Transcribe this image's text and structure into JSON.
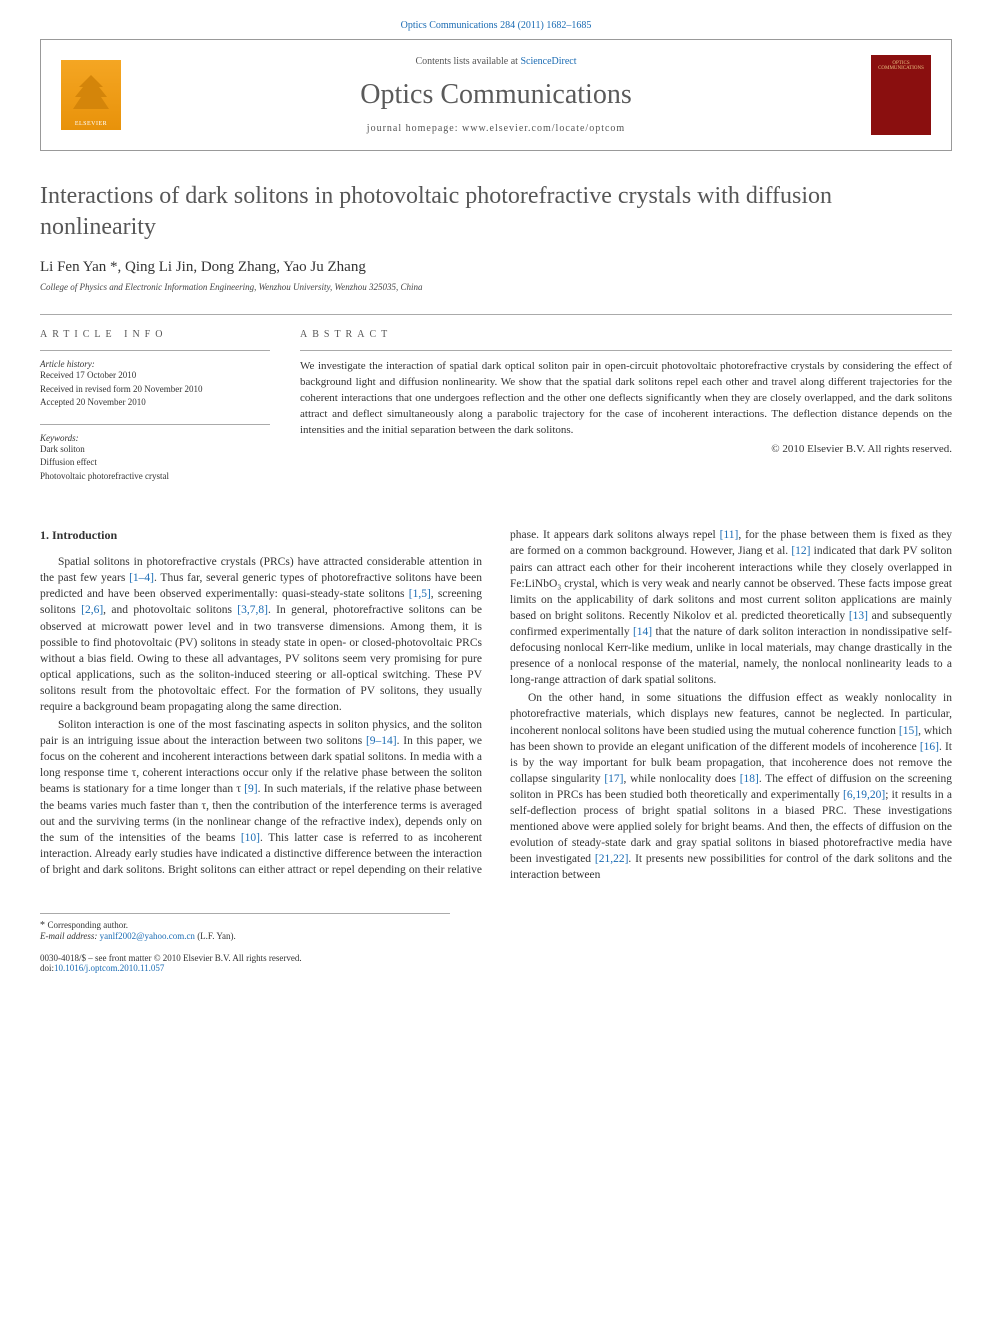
{
  "header": {
    "top_citation": "Optics Communications 284 (2011) 1682–1685",
    "contents_text": "Contents lists available at ",
    "sciencedirect": "ScienceDirect",
    "journal_name": "Optics Communications",
    "homepage_text": "journal homepage: www.elsevier.com/locate/optcom",
    "elsevier_label": "ELSEVIER",
    "cover_line1": "OPTICS",
    "cover_line2": "COMMUNICATIONS"
  },
  "article": {
    "title": "Interactions of dark solitons in photovoltaic photorefractive crystals with diffusion nonlinearity",
    "authors": "Li Fen Yan *, Qing Li Jin, Dong Zhang, Yao Ju Zhang",
    "affiliation": "College of Physics and Electronic Information Engineering, Wenzhou University, Wenzhou 325035, China"
  },
  "info": {
    "label": "ARTICLE INFO",
    "history_head": "Article history:",
    "received": "Received 17 October 2010",
    "revised": "Received in revised form 20 November 2010",
    "accepted": "Accepted 20 November 2010",
    "keywords_head": "Keywords:",
    "kw1": "Dark soliton",
    "kw2": "Diffusion effect",
    "kw3": "Photovoltaic photorefractive crystal"
  },
  "abstract": {
    "label": "ABSTRACT",
    "text": "We investigate the interaction of spatial dark optical soliton pair in open-circuit photovoltaic photorefractive crystals by considering the effect of background light and diffusion nonlinearity. We show that the spatial dark solitons repel each other and travel along different trajectories for the coherent interactions that one undergoes reflection and the other one deflects significantly when they are closely overlapped, and the dark solitons attract and deflect simultaneously along a parabolic trajectory for the case of incoherent interactions. The deflection distance depends on the intensities and the initial separation between the dark solitons.",
    "copyright": "© 2010 Elsevier B.V. All rights reserved."
  },
  "body": {
    "section1_title": "1. Introduction",
    "p1a": "Spatial solitons in photorefractive crystals (PRCs) have attracted considerable attention in the past few years ",
    "r1": "[1–4]",
    "p1b": ". Thus far, several generic types of photorefractive solitons have been predicted and have been observed experimentally: quasi-steady-state solitons ",
    "r2": "[1,5]",
    "p1c": ", screening solitons ",
    "r3": "[2,6]",
    "p1d": ", and photovoltaic solitons ",
    "r4": "[3,7,8]",
    "p1e": ". In general, photorefractive solitons can be observed at microwatt power level and in two transverse dimensions. Among them, it is possible to find photovoltaic (PV) solitons in steady state in open- or closed-photovoltaic PRCs without a bias field. Owing to these all advantages, PV solitons seem very promising for pure optical applications, such as the soliton-induced steering or all-optical switching. These PV solitons result from the photovoltaic effect. For the formation of PV solitons, they usually require a background beam propagating along the same direction.",
    "p2a": "Soliton interaction is one of the most fascinating aspects in soliton physics, and the soliton pair is an intriguing issue about the interaction between two solitons ",
    "r5": "[9–14]",
    "p2b": ". In this paper, we focus on the coherent and incoherent interactions between dark spatial solitons. In media with a long response time τ, coherent interactions occur only if the relative phase between the soliton beams is stationary for a time longer than τ ",
    "r6": "[9]",
    "p2c": ". In such materials, if the relative phase between the beams varies much faster than τ, then the contribution of the interference terms is averaged out and the surviving terms (in the nonlinear change of the refractive index), depends only on the sum of the intensities of the beams ",
    "r7": "[10]",
    "p2d": ". This latter case is referred to as incoherent interaction. Already early studies have indicated a distinctive difference between the interaction of bright and dark solitons. Bright solitons can either attract or repel depending on their relative phase. It appears dark solitons always repel ",
    "r8": "[11]",
    "p2e": ", for the phase between them is fixed as they are formed on a common background. However, Jiang et al. ",
    "r9": "[12]",
    "p2f": " indicated that dark PV soliton pairs can attract each other for their incoherent interactions while they closely overlapped in Fe:LiNbO₃ crystal, which is very weak and nearly cannot be observed. These facts impose great limits on the applicability of dark solitons and most current soliton applications are mainly based on bright solitons. Recently Nikolov et al. predicted theoretically ",
    "r10": "[13]",
    "p2g": " and subsequently confirmed experimentally ",
    "r11": "[14]",
    "p2h": " that the nature of dark soliton interaction in nondissipative self-defocusing nonlocal Kerr-like medium, unlike in local materials, may change drastically in the presence of a nonlocal response of the material, namely, the nonlocal nonlinearity leads to a long-range attraction of dark spatial solitons.",
    "p3a": "On the other hand, in some situations the diffusion effect as weakly nonlocality in photorefractive materials, which displays new features, cannot be neglected. In particular, incoherent nonlocal solitons have been studied using the mutual coherence function ",
    "r12": "[15]",
    "p3b": ", which has been shown to provide an elegant unification of the different models of incoherence ",
    "r13": "[16]",
    "p3c": ". It is by the way important for bulk beam propagation, that incoherence does not remove the collapse singularity ",
    "r14": "[17]",
    "p3d": ", while nonlocality does ",
    "r15": "[18]",
    "p3e": ". The effect of diffusion on the screening soliton in PRCs has been studied both theoretically and experimentally ",
    "r16": "[6,19,20]",
    "p3f": "; it results in a self-deflection process of bright spatial solitons in a biased PRC. These investigations mentioned above were applied solely for bright beams. And then, the effects of diffusion on the evolution of steady-state dark and gray spatial solitons in biased photorefractive media have been investigated ",
    "r17": "[21,22]",
    "p3g": ". It presents new possibilities for control of the dark solitons and the interaction between"
  },
  "footer": {
    "corresp": "Corresponding author.",
    "email_label": "E-mail address: ",
    "email": "yanlf2002@yahoo.com.cn",
    "email_suffix": " (L.F. Yan).",
    "issn": "0030-4018/$ – see front matter © 2010 Elsevier B.V. All rights reserved.",
    "doi_label": "doi:",
    "doi": "10.1016/j.optcom.2010.11.057"
  },
  "colors": {
    "link": "#1a6bb3",
    "text": "#333333",
    "border": "#aaaaaa"
  }
}
